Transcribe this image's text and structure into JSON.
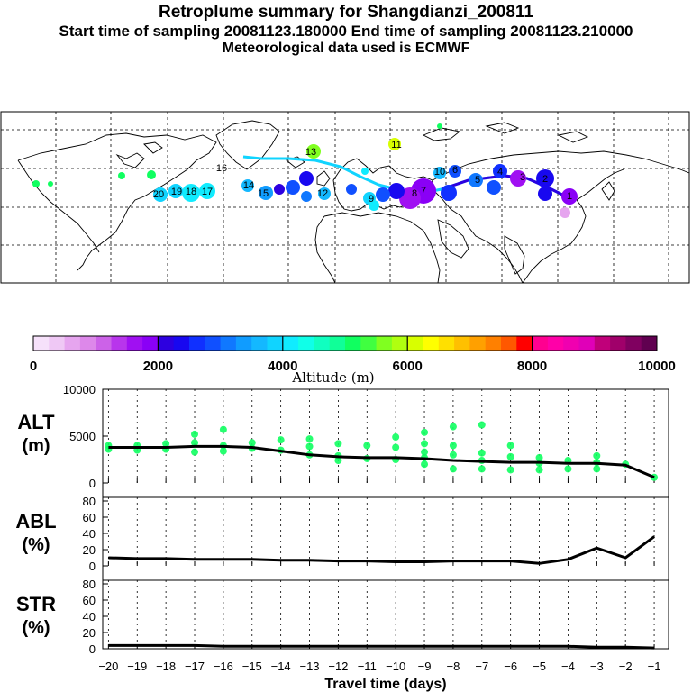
{
  "header": {
    "title": "Retroplume summary for Shangdianzi_200811",
    "sampling_line": "Start time of sampling 20081123.180000     End time of sampling 20081123.210000",
    "met_line": "Meteorological data used is ECMWF"
  },
  "colorbar": {
    "label": "Altitude (m)",
    "ticks": [
      "0",
      "2000",
      "4000",
      "6000",
      "8000",
      "10000"
    ],
    "colors": [
      "#f6e1fa",
      "#efc8f5",
      "#e6a5ef",
      "#dd88ea",
      "#cc62e8",
      "#b835ec",
      "#a010f2",
      "#8a00f6",
      "#2d00e0",
      "#1808f0",
      "#1030ff",
      "#1050ff",
      "#1078ff",
      "#109cff",
      "#14b8ff",
      "#10d4ff",
      "#10ecff",
      "#10ffe8",
      "#10ffc0",
      "#10ff98",
      "#10ff60",
      "#40ff40",
      "#80ff20",
      "#b0ff10",
      "#d8ff00",
      "#ffff00",
      "#ffe000",
      "#ffc000",
      "#ffa000",
      "#ff8000",
      "#ff5800",
      "#ff0000",
      "#ff0090",
      "#ff00a8",
      "#f000b0",
      "#e000b8",
      "#c0007a",
      "#a0006a",
      "#800060",
      "#600050"
    ]
  },
  "map_labels": [
    "20",
    "19",
    "18",
    "17",
    "16",
    "15",
    "14",
    "13",
    "12",
    "11",
    "10",
    "9",
    "8",
    "7",
    "6",
    "5",
    "4",
    "3",
    "2",
    "1"
  ],
  "chart_data": [
    {
      "type": "line",
      "panel": "ALT",
      "ylabel_line1": "ALT",
      "ylabel_line2": "(m)",
      "ylim": [
        0,
        10000
      ],
      "yticks": [
        "0",
        "5000",
        "10000"
      ],
      "x": [
        -20,
        -19,
        -18,
        -17,
        -16,
        -15,
        -14,
        -13,
        -12,
        -11,
        -10,
        -9,
        -8,
        -7,
        -6,
        -5,
        -4,
        -3,
        -2,
        -1
      ],
      "values": [
        3800,
        3800,
        3800,
        3900,
        3900,
        3800,
        3400,
        3000,
        2800,
        2700,
        2700,
        2600,
        2400,
        2300,
        2200,
        2200,
        2100,
        2100,
        1900,
        600
      ],
      "points": [
        [
          -20,
          4000
        ],
        [
          -20,
          3600
        ],
        [
          -19,
          4000
        ],
        [
          -19,
          3500
        ],
        [
          -18,
          4200
        ],
        [
          -18,
          3600
        ],
        [
          -17,
          5200
        ],
        [
          -17,
          4300
        ],
        [
          -17,
          3300
        ],
        [
          -16,
          5700
        ],
        [
          -16,
          4000
        ],
        [
          -16,
          3400
        ],
        [
          -15,
          4300
        ],
        [
          -15,
          3700
        ],
        [
          -14,
          4600
        ],
        [
          -14,
          3500
        ],
        [
          -13,
          4700
        ],
        [
          -13,
          3900
        ],
        [
          -13,
          3000
        ],
        [
          -12,
          4200
        ],
        [
          -12,
          2900
        ],
        [
          -12,
          2400
        ],
        [
          -11,
          4000
        ],
        [
          -11,
          2600
        ],
        [
          -10,
          4900
        ],
        [
          -10,
          3800
        ],
        [
          -10,
          2500
        ],
        [
          -9,
          5400
        ],
        [
          -9,
          4200
        ],
        [
          -9,
          3300
        ],
        [
          -9,
          2700
        ],
        [
          -9,
          2000
        ],
        [
          -8,
          6000
        ],
        [
          -8,
          4000
        ],
        [
          -8,
          3000
        ],
        [
          -8,
          1500
        ],
        [
          -7,
          6200
        ],
        [
          -7,
          3200
        ],
        [
          -7,
          2400
        ],
        [
          -7,
          1500
        ],
        [
          -6,
          4000
        ],
        [
          -6,
          2800
        ],
        [
          -6,
          1400
        ],
        [
          -5,
          2700
        ],
        [
          -5,
          2100
        ],
        [
          -5,
          1400
        ],
        [
          -4,
          2400
        ],
        [
          -4,
          1500
        ],
        [
          -3,
          2900
        ],
        [
          -3,
          2200
        ],
        [
          -3,
          1500
        ],
        [
          -2,
          2000
        ],
        [
          -1,
          600
        ]
      ]
    },
    {
      "type": "line",
      "panel": "ABL",
      "ylabel_line1": "ABL",
      "ylabel_line2": "(%)",
      "ylim": [
        0,
        100
      ],
      "yticks": [
        "0",
        "20",
        "40",
        "60",
        "80"
      ],
      "x": [
        -20,
        -19,
        -18,
        -17,
        -16,
        -15,
        -14,
        -13,
        -12,
        -11,
        -10,
        -9,
        -8,
        -7,
        -6,
        -5,
        -4,
        -3,
        -2,
        -1
      ],
      "values": [
        10,
        9,
        9,
        8,
        8,
        8,
        7,
        7,
        6,
        6,
        5,
        5,
        6,
        6,
        6,
        3,
        8,
        22,
        10,
        36
      ]
    },
    {
      "type": "line",
      "panel": "STR",
      "ylabel_line1": "STR",
      "ylabel_line2": "(%)",
      "ylim": [
        0,
        100
      ],
      "yticks": [
        "0",
        "20",
        "40",
        "60",
        "80"
      ],
      "x": [
        -20,
        -19,
        -18,
        -17,
        -16,
        -15,
        -14,
        -13,
        -12,
        -11,
        -10,
        -9,
        -8,
        -7,
        -6,
        -5,
        -4,
        -3,
        -2,
        -1
      ],
      "values": [
        4,
        4,
        4,
        4,
        3,
        3,
        3,
        3,
        3,
        3,
        3,
        3,
        3,
        3,
        3,
        3,
        3,
        2,
        2,
        1
      ],
      "xlabel": "Travel time (days)",
      "xticks": [
        "−20",
        "−19",
        "−18",
        "−17",
        "−16",
        "−15",
        "−14",
        "−13",
        "−12",
        "−11",
        "−10",
        "−9",
        "−8",
        "−7",
        "−6",
        "−5",
        "−4",
        "−3",
        "−2",
        "−1"
      ]
    }
  ]
}
